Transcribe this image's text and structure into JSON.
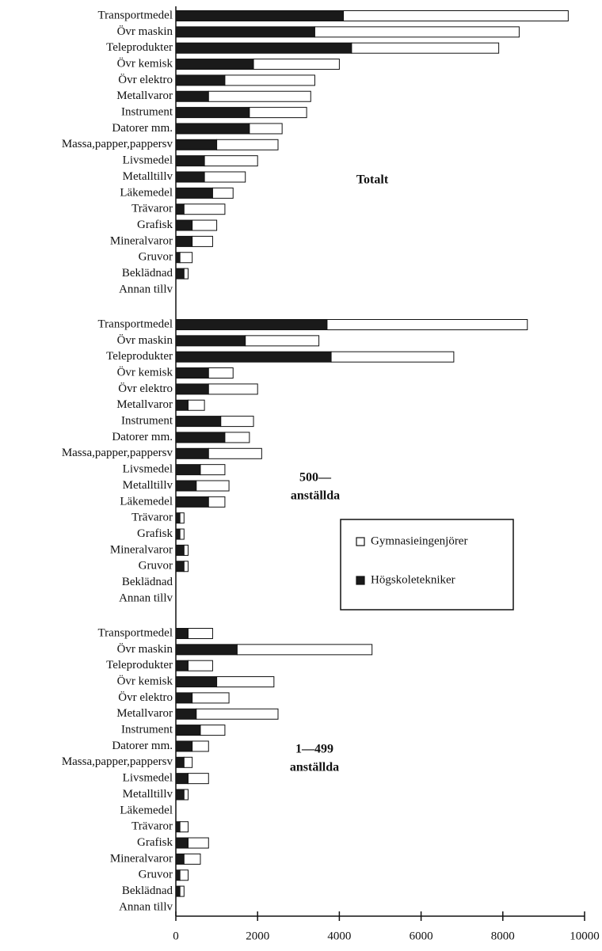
{
  "chart_data": {
    "type": "bar",
    "orientation": "horizontal",
    "stacked": true,
    "xlim": [
      0,
      10000
    ],
    "xticks": [
      0,
      2000,
      4000,
      6000,
      8000,
      10000
    ],
    "series": [
      {
        "name": "Högskoletekniker",
        "color": "#1a1a1a",
        "values": [
          [
            4100,
            3400,
            4300,
            1900,
            1200,
            800,
            1800,
            1800,
            1000,
            700,
            700,
            900,
            200,
            400,
            400,
            100,
            200,
            0
          ],
          [
            3700,
            1700,
            3800,
            800,
            800,
            300,
            1100,
            1200,
            800,
            600,
            500,
            800,
            100,
            100,
            200,
            200,
            0,
            0
          ],
          [
            300,
            1500,
            300,
            1000,
            400,
            500,
            600,
            400,
            200,
            300,
            200,
            0,
            100,
            300,
            200,
            100,
            100,
            0
          ]
        ]
      },
      {
        "name": "Gymnasieingenjörer",
        "color": "#ffffff",
        "values": [
          [
            5500,
            5000,
            3600,
            2100,
            2200,
            2500,
            1400,
            800,
            1500,
            1300,
            1000,
            500,
            1000,
            600,
            500,
            300,
            100,
            0
          ],
          [
            4900,
            1800,
            3000,
            600,
            1200,
            400,
            800,
            600,
            1300,
            600,
            800,
            400,
            100,
            100,
            100,
            100,
            0,
            0
          ],
          [
            600,
            3300,
            600,
            1400,
            900,
            2000,
            600,
            400,
            200,
            500,
            100,
            0,
            200,
            500,
            400,
            200,
            100,
            0
          ]
        ]
      }
    ],
    "panels": [
      {
        "title": [
          "Totalt"
        ],
        "categories": [
          "Transportmedel",
          "Övr maskin",
          "Teleprodukter",
          "Övr kemisk",
          "Övr elektro",
          "Metallvaror",
          "Instrument",
          "Datorer mm.",
          "Massa,papper,pappersv",
          "Livsmedel",
          "Metalltillv",
          "Läkemedel",
          "Trävaror",
          "Grafisk",
          "Mineralvaror",
          "Gruvor",
          "Beklädnad",
          "Annan tillv"
        ]
      },
      {
        "title": [
          "500—",
          "anställda"
        ],
        "categories": [
          "Transportmedel",
          "Övr maskin",
          "Teleprodukter",
          "Övr kemisk",
          "Övr elektro",
          "Metallvaror",
          "Instrument",
          "Datorer mm.",
          "Massa,papper,pappersv",
          "Livsmedel",
          "Metalltillv",
          "Läkemedel",
          "Trävaror",
          "Grafisk",
          "Mineralvaror",
          "Gruvor",
          "Beklädnad",
          "Annan tillv"
        ]
      },
      {
        "title": [
          "1—499",
          "anställda"
        ],
        "categories": [
          "Transportmedel",
          "Övr maskin",
          "Teleprodukter",
          "Övr kemisk",
          "Övr elektro",
          "Metallvaror",
          "Instrument",
          "Datorer mm.",
          "Massa,papper,pappersv",
          "Livsmedel",
          "Metalltillv",
          "Läkemedel",
          "Trävaror",
          "Grafisk",
          "Mineralvaror",
          "Gruvor",
          "Beklädnad",
          "Annan tillv"
        ]
      }
    ]
  }
}
